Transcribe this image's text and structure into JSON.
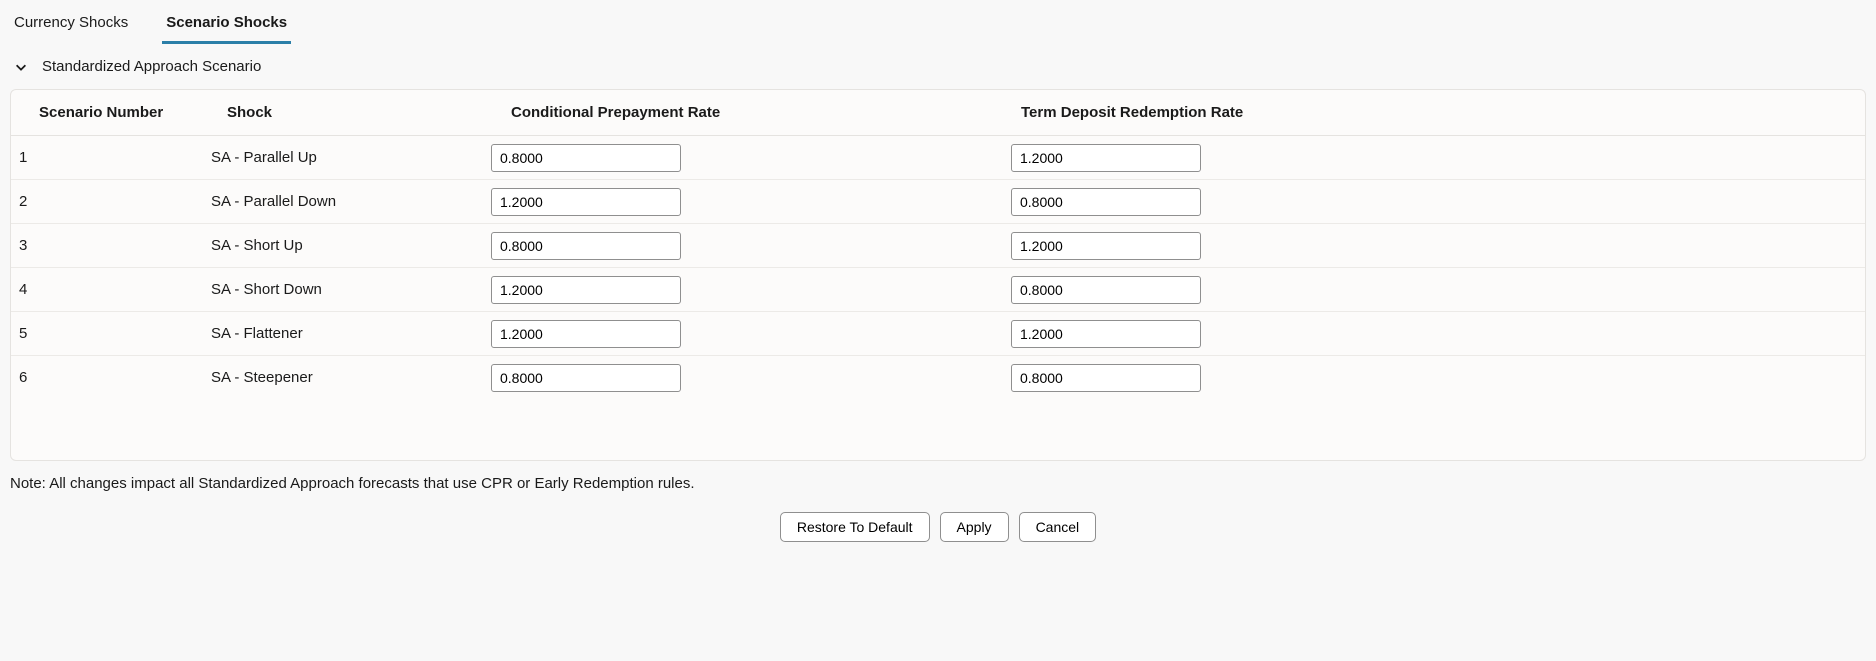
{
  "tabs": {
    "currency": "Currency Shocks",
    "scenario": "Scenario Shocks",
    "active": "scenario"
  },
  "section": {
    "title": "Standardized Approach Scenario"
  },
  "table": {
    "columns": {
      "scenario_number": "Scenario Number",
      "shock": "Shock",
      "cpr": "Conditional Prepayment Rate",
      "tdr": "Term Deposit Redemption Rate"
    },
    "rows": [
      {
        "number": "1",
        "shock": "SA - Parallel Up",
        "cpr": "0.8000",
        "tdr": "1.2000"
      },
      {
        "number": "2",
        "shock": "SA - Parallel Down",
        "cpr": "1.2000",
        "tdr": "0.8000"
      },
      {
        "number": "3",
        "shock": "SA - Short Up",
        "cpr": "0.8000",
        "tdr": "1.2000"
      },
      {
        "number": "4",
        "shock": "SA - Short Down",
        "cpr": "1.2000",
        "tdr": "0.8000"
      },
      {
        "number": "5",
        "shock": "SA - Flattener",
        "cpr": "1.2000",
        "tdr": "1.2000"
      },
      {
        "number": "6",
        "shock": "SA - Steepener",
        "cpr": "0.8000",
        "tdr": "0.8000"
      }
    ]
  },
  "note": "Note: All changes impact all Standardized Approach forecasts that use CPR or Early Redemption rules.",
  "buttons": {
    "restore": "Restore To Default",
    "apply": "Apply",
    "cancel": "Cancel"
  },
  "colors": {
    "accent": "#2b7fa8",
    "border": "#e5e3e0",
    "input_border": "#8f8f8f",
    "card_bg": "#fcfbfa",
    "page_bg": "#f8f8f8",
    "text": "#1a1a1a"
  }
}
